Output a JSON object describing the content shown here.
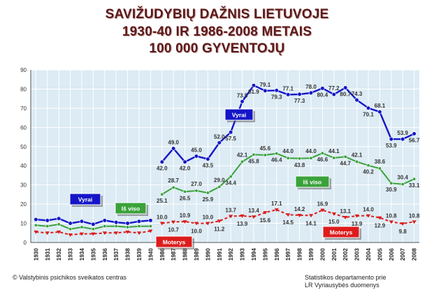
{
  "title_lines": [
    "SAVIŽUDYBIŲ DAŽNIS LIETUVOJE",
    "1930-40 IR 1986-2008 METAIS",
    "100 000 GYVENTOJŲ"
  ],
  "footer": {
    "left": "© Valstybinis psichikos sveikatos centras",
    "right_line1": "Statistikos departamento prie",
    "right_line2": "LR Vyriausybės duomenys"
  },
  "colors": {
    "vyrai": "#1515c8",
    "is_viso": "#3aa23a",
    "moterys": "#dd1c1c",
    "title": "#5c1a1a",
    "plot_bg": "#dcebf4",
    "grid": "#ffffff"
  },
  "chart_data": {
    "type": "line",
    "title": "SAVIŽUDYBIŲ DAŽNIS LIETUVOJE 1930-40 IR 1986-2008 METAIS 100 000 GYVENTOJŲ",
    "ylim": [
      0,
      90
    ],
    "yticks": [
      0,
      10,
      20,
      30,
      40,
      50,
      60,
      70,
      80,
      90
    ],
    "grid": true,
    "categories": [
      "1930",
      "1931",
      "1932",
      "1933",
      "1934",
      "1935",
      "1936",
      "1937",
      "1938",
      "1939",
      "1940",
      "1986",
      "1987",
      "1988",
      "1989",
      "1990",
      "1991",
      "1992",
      "1993",
      "1994",
      "1995",
      "1996",
      "1997",
      "1998",
      "1999",
      "2000",
      "2001",
      "2002",
      "2003",
      "2004",
      "2005",
      "2006",
      "2007",
      "2008"
    ],
    "series": [
      {
        "name": "Vyrai",
        "key": "vyrai",
        "values": [
          12.0,
          11.5,
          12.5,
          10.0,
          11.0,
          9.5,
          11.5,
          10.5,
          10.0,
          11.0,
          11.5,
          42.0,
          49.0,
          42.0,
          45.0,
          43.5,
          52.0,
          57.5,
          73.5,
          81.9,
          79.1,
          79.3,
          77.1,
          77.3,
          78.0,
          80.4,
          77.2,
          80.7,
          74.3,
          70.1,
          68.1,
          53.9,
          53.9,
          56.7
        ],
        "labels": [
          null,
          null,
          null,
          null,
          null,
          null,
          null,
          null,
          null,
          null,
          null,
          "42.0",
          "49.0",
          "42.0",
          "45.0",
          "43.5",
          "52.0",
          "57.5",
          "73.5",
          "81.9",
          "79.1",
          "79.3",
          "77.1",
          "77.3",
          "78.0",
          "80.4",
          "77.2",
          "80.7",
          "74.3",
          "70.1",
          "68.1",
          "53.9",
          "53.9",
          "56.7"
        ]
      },
      {
        "name": "Iš viso",
        "key": "is_viso",
        "values": [
          9.0,
          8.5,
          9.5,
          7.0,
          8.0,
          7.0,
          8.5,
          8.5,
          8.0,
          8.5,
          8.5,
          25.1,
          28.7,
          26.5,
          27.0,
          25.9,
          29.0,
          34.4,
          42.1,
          45.8,
          45.6,
          46.4,
          44.0,
          43.8,
          44.0,
          46.6,
          44.1,
          44.7,
          42.1,
          40.2,
          38.6,
          30.9,
          30.4,
          33.1
        ],
        "labels": [
          null,
          null,
          null,
          null,
          null,
          null,
          null,
          null,
          null,
          null,
          null,
          "25.1",
          "28.7",
          "26.5",
          "27.0",
          "25.9",
          "29.0",
          "34.4",
          "42.1",
          "45.8",
          "45.6",
          "46.4",
          "44.0",
          "43.8",
          "44.0",
          "46.6",
          "44.1",
          "44.7",
          "42.1",
          "40.2",
          "38.6",
          "30.9",
          "30.4",
          "33.1"
        ]
      },
      {
        "name": "Moterys",
        "key": "moterys",
        "values": [
          5.5,
          5.0,
          5.5,
          4.0,
          4.5,
          4.5,
          5.0,
          5.0,
          5.5,
          5.0,
          6.0,
          10.0,
          10.7,
          10.9,
          10.0,
          10.0,
          11.2,
          13.7,
          13.9,
          13.4,
          15.6,
          17.1,
          14.5,
          14.2,
          14.1,
          16.9,
          15.0,
          13.1,
          13.9,
          14.0,
          12.9,
          10.8,
          9.8,
          10.8
        ],
        "labels": [
          null,
          null,
          null,
          null,
          null,
          null,
          null,
          null,
          null,
          null,
          null,
          "10.0",
          "10.7",
          "10.9",
          "10.0",
          "10.0",
          "11.2",
          "13.7",
          "13.9",
          "13.4",
          "15.6",
          "17.1",
          "14.5",
          "14.2",
          "14.1",
          "16.9",
          "15.0",
          "13.1",
          "13.9",
          "14.0",
          "12.9",
          "10.8",
          "9.8",
          "10.8"
        ]
      }
    ],
    "legend_tags": [
      {
        "text": "Vyrai",
        "series": "vyrai"
      },
      {
        "text": "Iš viso",
        "series": "is_viso"
      },
      {
        "text": "Vyrai",
        "series": "vyrai"
      },
      {
        "text": "Moterys",
        "series": "moterys"
      },
      {
        "text": "Iš viso",
        "series": "is_viso"
      },
      {
        "text": "Moterys",
        "series": "moterys"
      }
    ]
  }
}
